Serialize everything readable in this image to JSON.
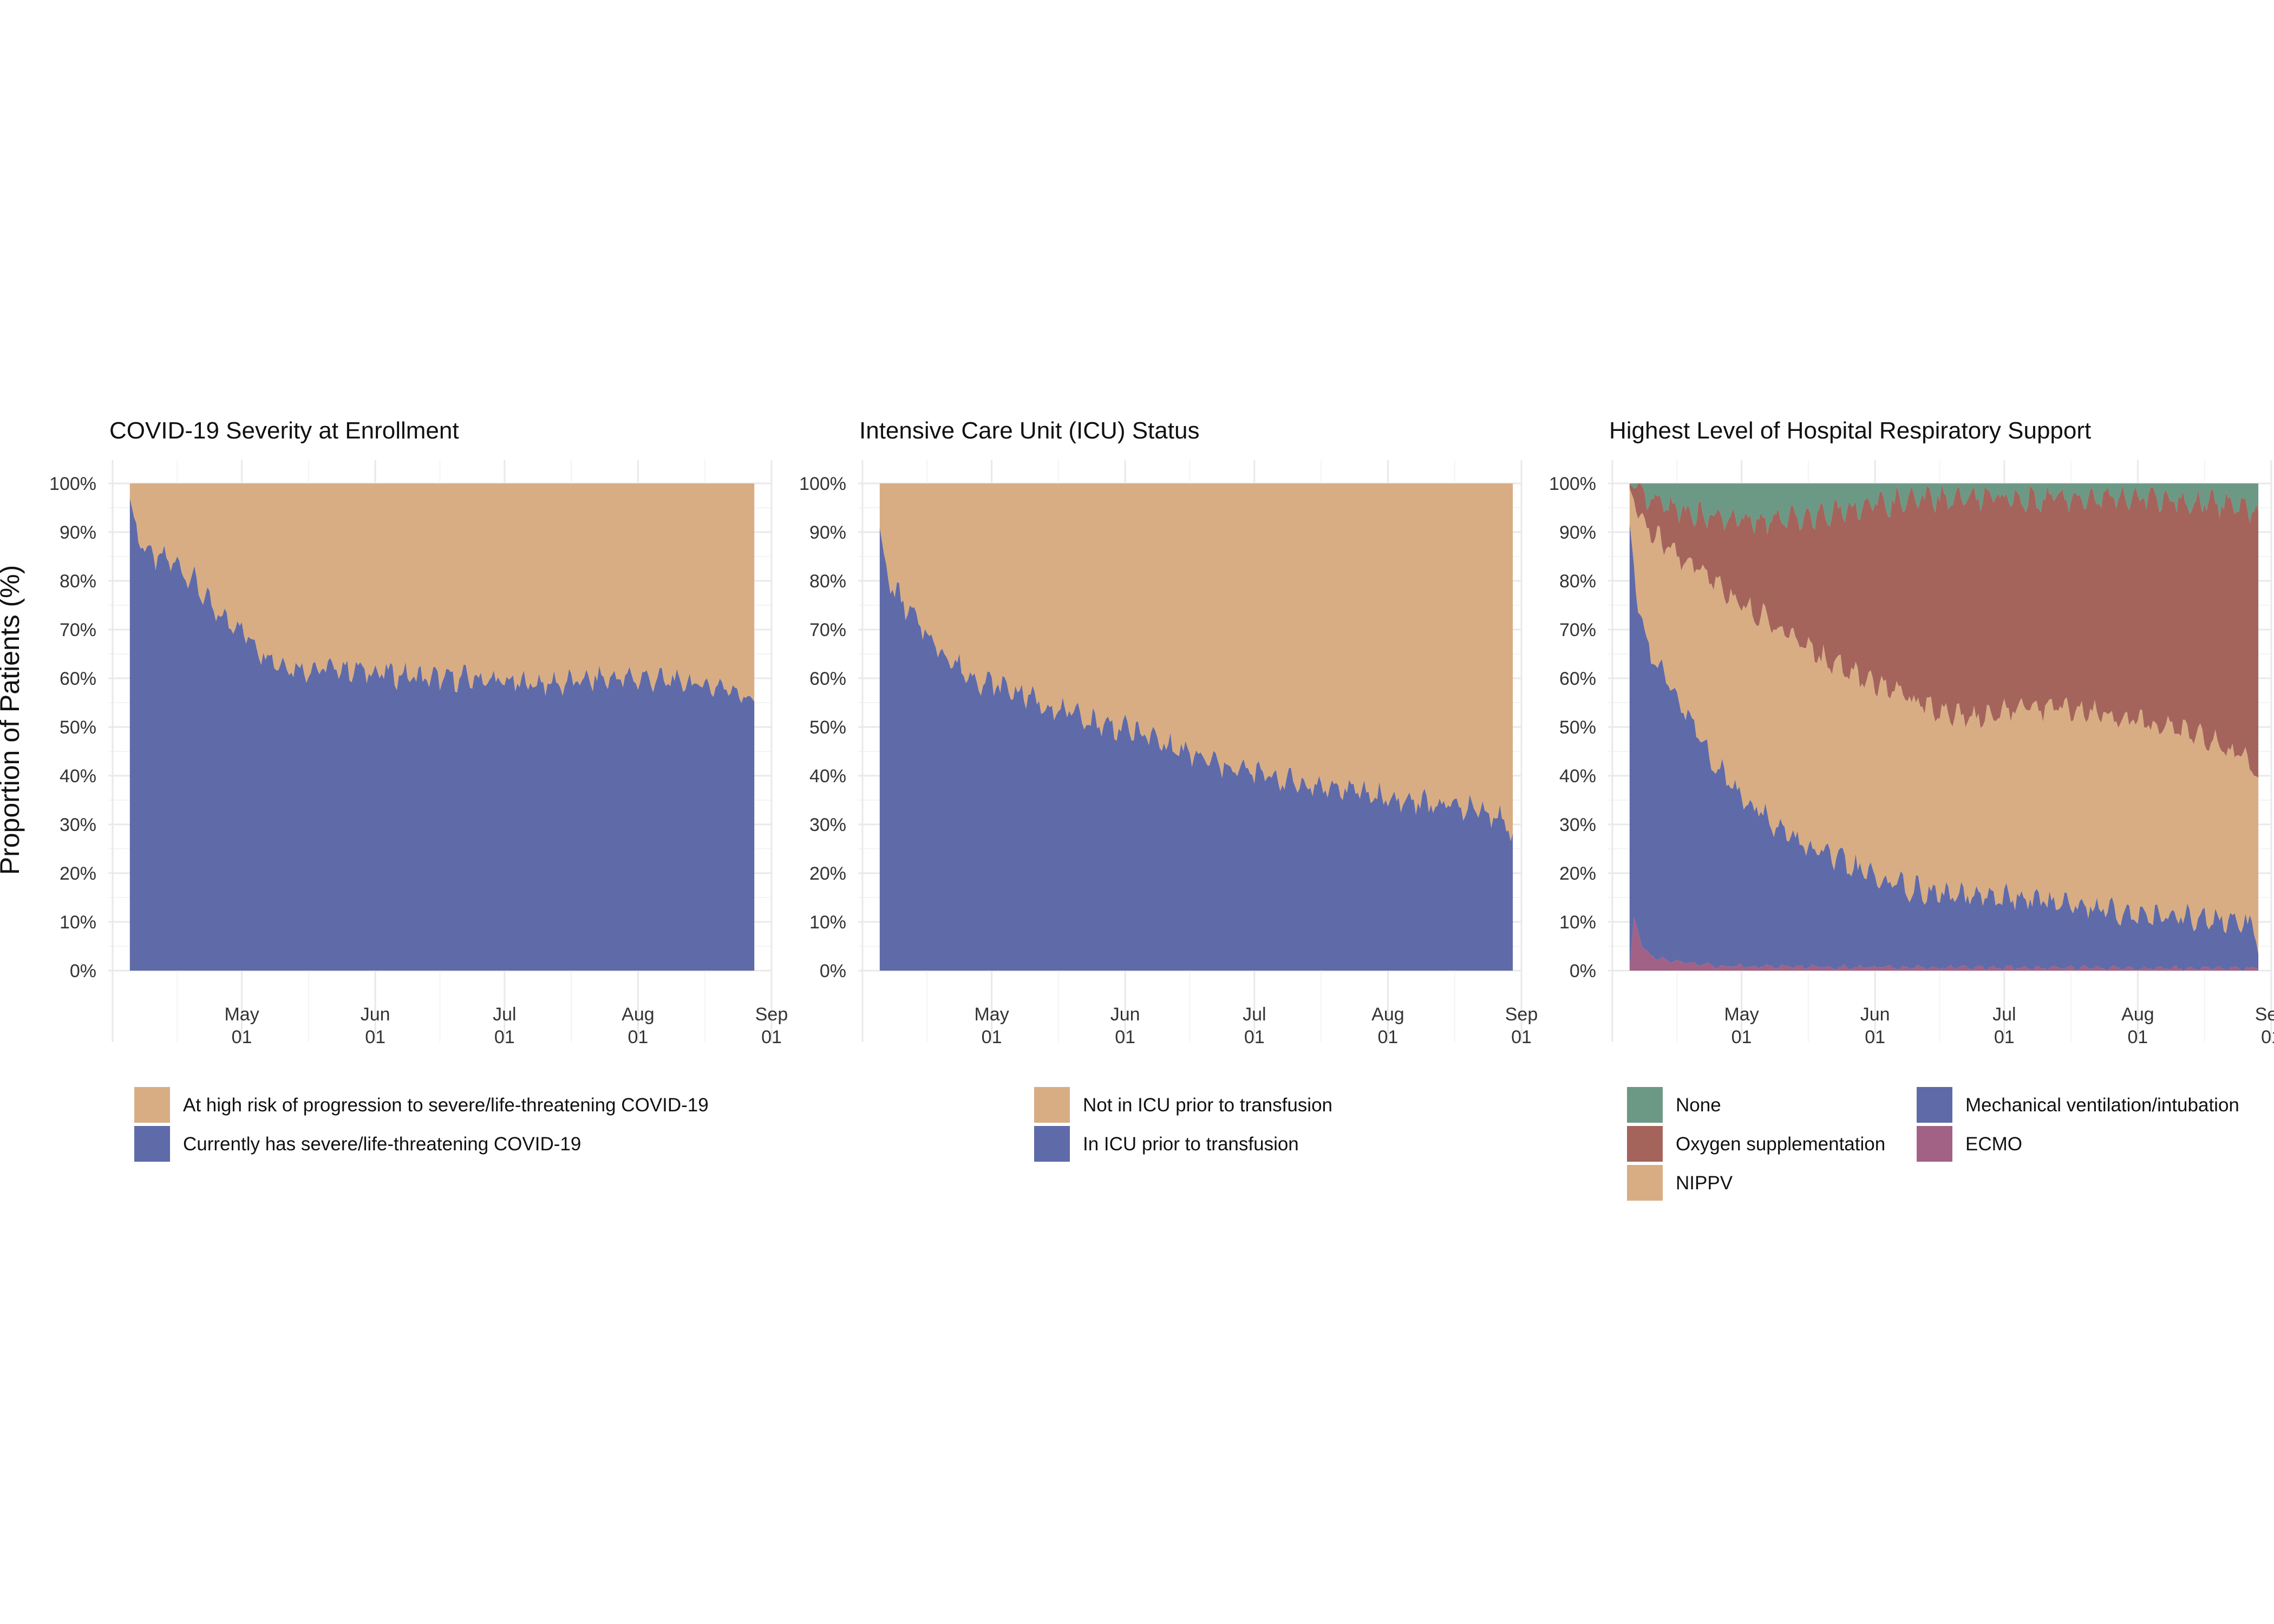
{
  "figure": {
    "shared_ylabel": "Proportion of Patients (%)"
  },
  "chart_data": [
    {
      "type": "area",
      "stacked": true,
      "title": "COVID-19 Severity at Enrollment",
      "xlabel": "",
      "ylabel": "Proportion of Patients (%)",
      "x_range": [
        "2020-04-05",
        "2020-08-28"
      ],
      "xlim": [
        "2020-03-31",
        "2020-09-01"
      ],
      "ylim": [
        0,
        100
      ],
      "x_ticks": [
        "May\n01",
        "Jun\n01",
        "Jul\n01",
        "Aug\n01",
        "Sep\n01"
      ],
      "y_ticks": [
        "0%",
        "10%",
        "20%",
        "30%",
        "40%",
        "50%",
        "60%",
        "70%",
        "80%",
        "90%",
        "100%"
      ],
      "grid": true,
      "legend_position": "bottom",
      "series": [
        {
          "name": "Currently has severe/life-threatening COVID-19",
          "color": "#5f6aa9",
          "keypoints": [
            [
              0,
              97
            ],
            [
              2,
              89
            ],
            [
              5,
              85
            ],
            [
              10,
              84
            ],
            [
              15,
              80
            ],
            [
              20,
              73
            ],
            [
              25,
              71
            ],
            [
              30,
              66
            ],
            [
              35,
              63
            ],
            [
              40,
              62
            ],
            [
              50,
              62
            ],
            [
              60,
              61
            ],
            [
              70,
              60
            ],
            [
              80,
              60
            ],
            [
              90,
              59
            ],
            [
              100,
              59
            ],
            [
              110,
              60
            ],
            [
              120,
              60
            ],
            [
              130,
              59
            ],
            [
              140,
              58
            ],
            [
              145,
              55
            ],
            [
              146,
              56
            ]
          ]
        },
        {
          "name": "At high risk of progression to severe/life-threatening COVID-19",
          "color": "#d8ad84",
          "fills_to": 100
        }
      ]
    },
    {
      "type": "area",
      "stacked": true,
      "title": "Intensive Care Unit (ICU) Status",
      "xlabel": "",
      "ylabel": "Proportion of Patients (%)",
      "x_range": [
        "2020-04-05",
        "2020-08-30"
      ],
      "xlim": [
        "2020-03-31",
        "2020-09-01"
      ],
      "ylim": [
        0,
        100
      ],
      "x_ticks": [
        "May\n01",
        "Jun\n01",
        "Jul\n01",
        "Aug\n01",
        "Sep\n01"
      ],
      "y_ticks": [
        "0%",
        "10%",
        "20%",
        "30%",
        "40%",
        "50%",
        "60%",
        "70%",
        "80%",
        "90%",
        "100%"
      ],
      "grid": true,
      "legend_position": "bottom",
      "series": [
        {
          "name": "In ICU prior to transfusion",
          "color": "#5f6aa9",
          "keypoints": [
            [
              0,
              91
            ],
            [
              2,
              80
            ],
            [
              5,
              76
            ],
            [
              10,
              70
            ],
            [
              15,
              65
            ],
            [
              20,
              61
            ],
            [
              25,
              59
            ],
            [
              30,
              58
            ],
            [
              35,
              56
            ],
            [
              40,
              54
            ],
            [
              50,
              51
            ],
            [
              60,
              49
            ],
            [
              70,
              45
            ],
            [
              80,
              42
            ],
            [
              90,
              40
            ],
            [
              100,
              38
            ],
            [
              110,
              37
            ],
            [
              120,
              35
            ],
            [
              130,
              34
            ],
            [
              140,
              33
            ],
            [
              145,
              31
            ],
            [
              147,
              27
            ]
          ]
        },
        {
          "name": "Not in ICU prior to transfusion",
          "color": "#d8ad84",
          "fills_to": 100
        }
      ]
    },
    {
      "type": "area",
      "stacked": true,
      "title": "Highest Level of Hospital Respiratory Support",
      "xlabel": "",
      "ylabel": "Proportion of Patients (%)",
      "x_range": [
        "2020-04-05",
        "2020-08-29"
      ],
      "xlim": [
        "2020-03-31",
        "2020-09-01"
      ],
      "ylim": [
        0,
        100
      ],
      "x_ticks": [
        "May\n01",
        "Jun\n01",
        "Jul\n01",
        "Aug\n01",
        "Sep\n01"
      ],
      "y_ticks": [
        "0%",
        "10%",
        "20%",
        "30%",
        "40%",
        "50%",
        "60%",
        "70%",
        "80%",
        "90%",
        "100%"
      ],
      "grid": true,
      "legend_position": "bottom",
      "series": [
        {
          "name": "ECMO",
          "color": "#a16285",
          "keypoints": [
            [
              0,
              0
            ],
            [
              1,
              11
            ],
            [
              3,
              5
            ],
            [
              5,
              3
            ],
            [
              10,
              2
            ],
            [
              20,
              1
            ],
            [
              40,
              0.8
            ],
            [
              80,
              0.6
            ],
            [
              120,
              0.5
            ],
            [
              146,
              0.5
            ]
          ]
        },
        {
          "name": "Mechanical ventilation/intubation",
          "color": "#5f6aa9",
          "keypoints": [
            [
              0,
              92
            ],
            [
              2,
              75
            ],
            [
              5,
              65
            ],
            [
              10,
              57
            ],
            [
              15,
              50
            ],
            [
              20,
              42
            ],
            [
              25,
              37
            ],
            [
              30,
              33
            ],
            [
              35,
              29
            ],
            [
              40,
              26
            ],
            [
              45,
              24
            ],
            [
              50,
              22
            ],
            [
              55,
              20
            ],
            [
              60,
              18
            ],
            [
              70,
              16
            ],
            [
              80,
              15
            ],
            [
              90,
              15
            ],
            [
              100,
              14
            ],
            [
              110,
              13
            ],
            [
              120,
              11
            ],
            [
              130,
              11
            ],
            [
              140,
              10
            ],
            [
              145,
              9
            ],
            [
              146,
              5
            ]
          ]
        },
        {
          "name": "NIPPV",
          "color": "#d8ad84",
          "keypoints": [
            [
              0,
              99
            ],
            [
              3,
              92
            ],
            [
              6,
              89
            ],
            [
              10,
              86
            ],
            [
              15,
              83
            ],
            [
              20,
              80
            ],
            [
              25,
              76
            ],
            [
              30,
              73
            ],
            [
              35,
              70
            ],
            [
              40,
              67
            ],
            [
              45,
              64
            ],
            [
              50,
              62
            ],
            [
              55,
              60
            ],
            [
              60,
              58
            ],
            [
              65,
              56
            ],
            [
              70,
              54
            ],
            [
              75,
              53
            ],
            [
              80,
              52
            ],
            [
              85,
              53
            ],
            [
              90,
              54
            ],
            [
              100,
              54
            ],
            [
              110,
              53
            ],
            [
              120,
              51
            ],
            [
              130,
              49
            ],
            [
              140,
              45
            ],
            [
              144,
              42
            ],
            [
              146,
              38
            ]
          ]
        },
        {
          "name": "Oxygen supplementation",
          "color": "#a4645b",
          "keypoints": [
            [
              0,
              100
            ],
            [
              3,
              97
            ],
            [
              10,
              95
            ],
            [
              20,
              93
            ],
            [
              30,
              92
            ],
            [
              40,
              93
            ],
            [
              50,
              95
            ],
            [
              60,
              96
            ],
            [
              70,
              97
            ],
            [
              80,
              97
            ],
            [
              90,
              97
            ],
            [
              100,
              97
            ],
            [
              110,
              97
            ],
            [
              120,
              97
            ],
            [
              130,
              96
            ],
            [
              140,
              96
            ],
            [
              146,
              94
            ]
          ]
        },
        {
          "name": "None",
          "color": "#6c9985",
          "fills_to": 100
        }
      ]
    }
  ]
}
